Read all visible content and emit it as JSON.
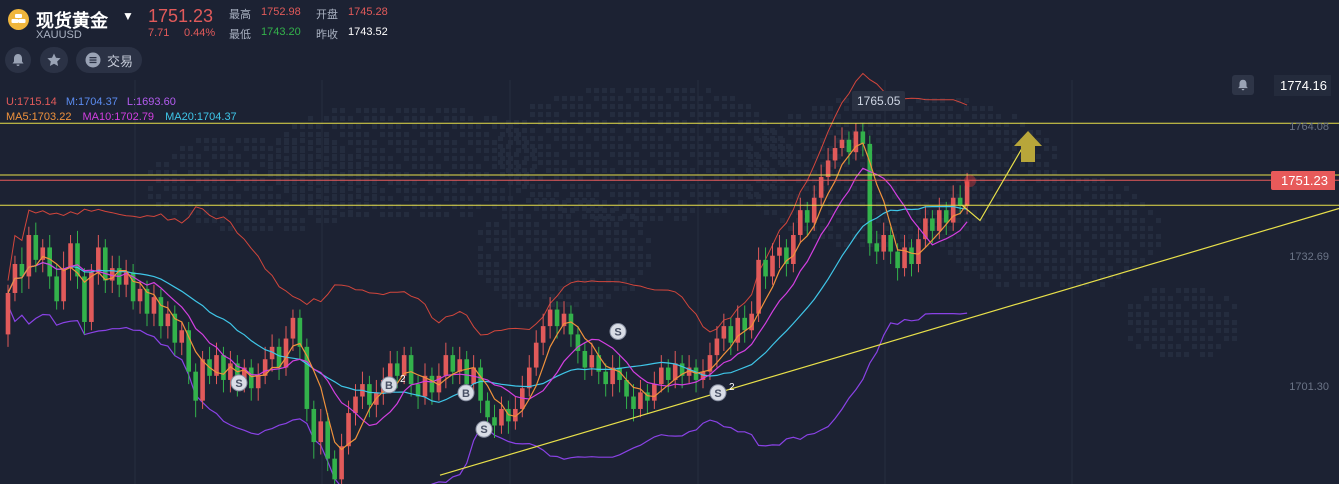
{
  "header": {
    "title": "现货黄金",
    "symbol": "XAUUSD",
    "price": "1751.23",
    "change": "7.71",
    "change_pct": "0.44%",
    "high_label": "最高",
    "high": "1752.98",
    "open_label": "开盘",
    "open": "1745.28",
    "low_label": "最低",
    "low": "1743.20",
    "prev_close_label": "昨收",
    "prev_close": "1743.52"
  },
  "toolbar": {
    "bell_icon": "bell-icon",
    "star_icon": "star-icon",
    "trade_icon": "list-icon",
    "trade_label": "交易"
  },
  "colors": {
    "background": "#1c2233",
    "up": "#e15a5a",
    "down": "#33b24b",
    "ma5": "#f0923c",
    "ma10": "#d23fe0",
    "ma20": "#3fc6e8",
    "boll_upper": "#d2463c",
    "boll_lower": "#8a42e6",
    "level_line": "#e8e04a"
  },
  "chart_data": {
    "type": "candlestick",
    "yaxis_ticks": [
      "1764.08",
      "1732.69",
      "1701.30"
    ],
    "current_price_tag": "1751.23",
    "top_price_tag": "1774.16",
    "high_marker": "1765.05",
    "bollinger": {
      "U": "U:1715.14",
      "M": "M:1704.37",
      "L": "L:1693.60"
    },
    "moving_averages": {
      "ma5": "MA5:1703.22",
      "ma10": "MA10:1702.79",
      "ma20": "MA20:1704.37"
    },
    "horizontal_levels": [
      1765.0,
      1752.5,
      1745.2
    ],
    "trend_line": {
      "from_price": 1680.0,
      "to_price": 1744.4
    },
    "projection": [
      1745.2,
      1741.5,
      1761.0
    ],
    "signals": [
      {
        "label": "S",
        "price": 1702.3
      },
      {
        "label": "B",
        "price": 1701.8,
        "count": "2"
      },
      {
        "label": "B",
        "price": 1699.9
      },
      {
        "label": "S",
        "price": 1691.1
      },
      {
        "label": "S",
        "price": 1714.7
      },
      {
        "label": "S",
        "price": 1699.9,
        "count": "2"
      }
    ],
    "candles": [
      [
        1714.0,
        1724.0,
        1726.0,
        1711.0
      ],
      [
        1724.0,
        1731.0,
        1733.0,
        1722.0
      ],
      [
        1731.0,
        1728.0,
        1735.0,
        1724.0
      ],
      [
        1728.0,
        1738.0,
        1740.0,
        1725.0
      ],
      [
        1738.0,
        1732.0,
        1741.0,
        1729.0
      ],
      [
        1732.0,
        1735.0,
        1737.0,
        1729.0
      ],
      [
        1735.0,
        1728.0,
        1738.0,
        1725.0
      ],
      [
        1728.0,
        1722.0,
        1731.0,
        1720.0
      ],
      [
        1722.0,
        1730.0,
        1734.0,
        1720.0
      ],
      [
        1730.0,
        1736.0,
        1738.0,
        1727.0
      ],
      [
        1736.0,
        1728.0,
        1739.0,
        1725.0
      ],
      [
        1728.0,
        1717.0,
        1730.0,
        1714.0
      ],
      [
        1717.0,
        1729.0,
        1731.0,
        1715.0
      ],
      [
        1729.0,
        1735.0,
        1738.0,
        1726.0
      ],
      [
        1735.0,
        1727.0,
        1737.0,
        1724.0
      ],
      [
        1727.0,
        1730.0,
        1733.0,
        1724.0
      ],
      [
        1730.0,
        1726.0,
        1733.0,
        1723.0
      ],
      [
        1726.0,
        1729.0,
        1732.0,
        1723.0
      ],
      [
        1729.0,
        1722.0,
        1731.0,
        1720.0
      ],
      [
        1722.0,
        1725.0,
        1727.0,
        1719.0
      ],
      [
        1725.0,
        1719.0,
        1727.0,
        1716.0
      ],
      [
        1719.0,
        1723.0,
        1726.0,
        1716.0
      ],
      [
        1723.0,
        1716.0,
        1725.0,
        1713.0
      ],
      [
        1716.0,
        1719.0,
        1722.0,
        1713.0
      ],
      [
        1719.0,
        1712.0,
        1721.0,
        1709.0
      ],
      [
        1712.0,
        1715.0,
        1717.0,
        1709.0
      ],
      [
        1715.0,
        1705.0,
        1717.0,
        1702.0
      ],
      [
        1705.0,
        1698.0,
        1707.0,
        1694.0
      ],
      [
        1698.0,
        1708.0,
        1710.0,
        1696.0
      ],
      [
        1708.0,
        1704.0,
        1711.0,
        1702.0
      ],
      [
        1704.0,
        1709.0,
        1712.0,
        1702.0
      ],
      [
        1709.0,
        1703.0,
        1711.0,
        1700.0
      ],
      [
        1703.0,
        1707.0,
        1710.0,
        1700.0
      ],
      [
        1707.0,
        1702.0,
        1709.0,
        1699.0
      ],
      [
        1702.0,
        1706.0,
        1708.0,
        1700.0
      ],
      [
        1706.0,
        1701.0,
        1708.0,
        1698.0
      ],
      [
        1701.0,
        1704.0,
        1707.0,
        1698.0
      ],
      [
        1704.0,
        1708.0,
        1711.0,
        1702.0
      ],
      [
        1708.0,
        1711.0,
        1714.0,
        1705.0
      ],
      [
        1711.0,
        1706.0,
        1713.0,
        1703.0
      ],
      [
        1706.0,
        1713.0,
        1716.0,
        1704.0
      ],
      [
        1713.0,
        1718.0,
        1720.0,
        1710.0
      ],
      [
        1718.0,
        1711.0,
        1720.0,
        1708.0
      ],
      [
        1711.0,
        1696.0,
        1713.0,
        1693.0
      ],
      [
        1696.0,
        1688.0,
        1698.0,
        1684.0
      ],
      [
        1688.0,
        1693.0,
        1696.0,
        1685.0
      ],
      [
        1693.0,
        1684.0,
        1695.0,
        1681.0
      ],
      [
        1684.0,
        1679.0,
        1686.0,
        1676.0
      ],
      [
        1679.0,
        1687.0,
        1690.0,
        1676.0
      ],
      [
        1687.0,
        1695.0,
        1698.0,
        1685.0
      ],
      [
        1695.0,
        1699.0,
        1702.0,
        1692.0
      ],
      [
        1699.0,
        1702.0,
        1705.0,
        1696.0
      ],
      [
        1702.0,
        1697.0,
        1704.0,
        1694.0
      ],
      [
        1697.0,
        1700.0,
        1703.0,
        1694.0
      ],
      [
        1700.0,
        1703.0,
        1706.0,
        1697.0
      ],
      [
        1703.0,
        1707.0,
        1710.0,
        1700.0
      ],
      [
        1707.0,
        1704.0,
        1710.0,
        1701.0
      ],
      [
        1704.0,
        1709.0,
        1711.0,
        1702.0
      ],
      [
        1709.0,
        1702.0,
        1711.0,
        1699.0
      ],
      [
        1702.0,
        1699.0,
        1704.0,
        1696.0
      ],
      [
        1699.0,
        1704.0,
        1707.0,
        1697.0
      ],
      [
        1704.0,
        1700.0,
        1706.0,
        1697.0
      ],
      [
        1700.0,
        1704.0,
        1707.0,
        1698.0
      ],
      [
        1704.0,
        1709.0,
        1712.0,
        1701.0
      ],
      [
        1709.0,
        1705.0,
        1711.0,
        1702.0
      ],
      [
        1705.0,
        1708.0,
        1711.0,
        1702.0
      ],
      [
        1708.0,
        1702.0,
        1710.0,
        1699.0
      ],
      [
        1702.0,
        1706.0,
        1709.0,
        1700.0
      ],
      [
        1706.0,
        1698.0,
        1708.0,
        1695.0
      ],
      [
        1698.0,
        1694.0,
        1700.0,
        1691.0
      ],
      [
        1694.0,
        1692.0,
        1697.0,
        1689.0
      ],
      [
        1692.0,
        1696.0,
        1699.0,
        1690.0
      ],
      [
        1696.0,
        1693.0,
        1698.0,
        1690.0
      ],
      [
        1693.0,
        1696.0,
        1699.0,
        1691.0
      ],
      [
        1696.0,
        1701.0,
        1704.0,
        1694.0
      ],
      [
        1701.0,
        1706.0,
        1709.0,
        1699.0
      ],
      [
        1706.0,
        1712.0,
        1715.0,
        1704.0
      ],
      [
        1712.0,
        1716.0,
        1719.0,
        1709.0
      ],
      [
        1716.0,
        1720.0,
        1723.0,
        1713.0
      ],
      [
        1720.0,
        1716.0,
        1722.0,
        1713.0
      ],
      [
        1716.0,
        1719.0,
        1722.0,
        1714.0
      ],
      [
        1719.0,
        1714.0,
        1721.0,
        1711.0
      ],
      [
        1714.0,
        1710.0,
        1716.0,
        1707.0
      ],
      [
        1710.0,
        1706.0,
        1712.0,
        1703.0
      ],
      [
        1706.0,
        1709.0,
        1712.0,
        1704.0
      ],
      [
        1709.0,
        1705.0,
        1711.0,
        1702.0
      ],
      [
        1705.0,
        1702.0,
        1707.0,
        1699.0
      ],
      [
        1702.0,
        1706.0,
        1709.0,
        1699.0
      ],
      [
        1706.0,
        1703.0,
        1709.0,
        1700.0
      ],
      [
        1703.0,
        1699.0,
        1705.0,
        1696.0
      ],
      [
        1699.0,
        1696.0,
        1702.0,
        1693.0
      ],
      [
        1696.0,
        1700.0,
        1703.0,
        1694.0
      ],
      [
        1700.0,
        1698.0,
        1702.0,
        1695.0
      ],
      [
        1698.0,
        1702.0,
        1705.0,
        1696.0
      ],
      [
        1702.0,
        1706.0,
        1709.0,
        1700.0
      ],
      [
        1706.0,
        1703.0,
        1708.0,
        1700.0
      ],
      [
        1703.0,
        1707.0,
        1710.0,
        1701.0
      ],
      [
        1707.0,
        1704.0,
        1709.0,
        1701.0
      ],
      [
        1704.0,
        1706.0,
        1709.0,
        1702.0
      ],
      [
        1706.0,
        1703.0,
        1708.0,
        1700.0
      ],
      [
        1703.0,
        1705.0,
        1708.0,
        1701.0
      ],
      [
        1705.0,
        1709.0,
        1712.0,
        1703.0
      ],
      [
        1709.0,
        1713.0,
        1716.0,
        1706.0
      ],
      [
        1713.0,
        1716.0,
        1719.0,
        1710.0
      ],
      [
        1716.0,
        1712.0,
        1718.0,
        1709.0
      ],
      [
        1712.0,
        1718.0,
        1721.0,
        1710.0
      ],
      [
        1718.0,
        1715.0,
        1721.0,
        1712.0
      ],
      [
        1715.0,
        1719.0,
        1722.0,
        1713.0
      ],
      [
        1719.0,
        1732.0,
        1735.0,
        1717.0
      ],
      [
        1732.0,
        1728.0,
        1735.0,
        1725.0
      ],
      [
        1728.0,
        1733.0,
        1736.0,
        1726.0
      ],
      [
        1733.0,
        1735.0,
        1738.0,
        1730.0
      ],
      [
        1735.0,
        1731.0,
        1737.0,
        1728.0
      ],
      [
        1731.0,
        1738.0,
        1741.0,
        1729.0
      ],
      [
        1738.0,
        1744.0,
        1747.0,
        1736.0
      ],
      [
        1744.0,
        1741.0,
        1746.0,
        1738.0
      ],
      [
        1741.0,
        1747.0,
        1750.0,
        1739.0
      ],
      [
        1747.0,
        1752.0,
        1755.0,
        1745.0
      ],
      [
        1752.0,
        1756.0,
        1759.0,
        1750.0
      ],
      [
        1756.0,
        1759.0,
        1762.0,
        1754.0
      ],
      [
        1759.0,
        1761.0,
        1764.0,
        1757.0
      ],
      [
        1761.0,
        1758.0,
        1763.0,
        1755.0
      ],
      [
        1758.0,
        1763.0,
        1765.0,
        1756.0
      ],
      [
        1763.0,
        1760.0,
        1765.0,
        1757.0
      ],
      [
        1760.0,
        1736.0,
        1762.0,
        1733.0
      ],
      [
        1736.0,
        1734.0,
        1739.0,
        1731.0
      ],
      [
        1734.0,
        1738.0,
        1741.0,
        1732.0
      ],
      [
        1738.0,
        1734.0,
        1740.0,
        1731.0
      ],
      [
        1734.0,
        1730.0,
        1736.0,
        1727.0
      ],
      [
        1730.0,
        1735.0,
        1738.0,
        1728.0
      ],
      [
        1735.0,
        1731.0,
        1737.0,
        1728.0
      ],
      [
        1731.0,
        1737.0,
        1740.0,
        1729.0
      ],
      [
        1737.0,
        1742.0,
        1745.0,
        1735.0
      ],
      [
        1742.0,
        1739.0,
        1744.0,
        1736.0
      ],
      [
        1739.0,
        1744.0,
        1747.0,
        1737.0
      ],
      [
        1744.0,
        1741.0,
        1746.0,
        1738.0
      ],
      [
        1741.0,
        1747.0,
        1750.0,
        1739.0
      ],
      [
        1747.0,
        1745.0,
        1750.0,
        1743.0
      ],
      [
        1745.0,
        1751.0,
        1753.0,
        1743.0
      ]
    ]
  }
}
